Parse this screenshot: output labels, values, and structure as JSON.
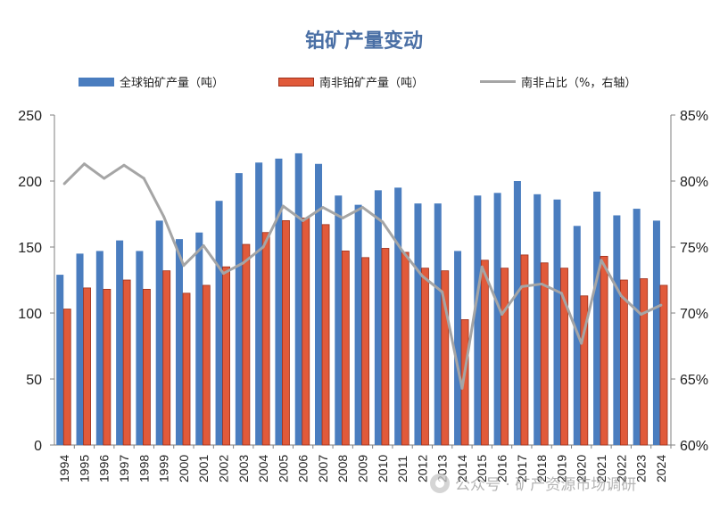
{
  "chart_data": {
    "type": "bar+line",
    "title": "铂矿产量变动",
    "categories": [
      "1994",
      "1995",
      "1996",
      "1997",
      "1998",
      "1999",
      "2000",
      "2001",
      "2002",
      "2003",
      "2004",
      "2005",
      "2006",
      "2007",
      "2008",
      "2009",
      "2010",
      "2011",
      "2012",
      "2013",
      "2014",
      "2015",
      "2016",
      "2017",
      "2018",
      "2019",
      "2020",
      "2021",
      "2022",
      "2023",
      "2024"
    ],
    "series": [
      {
        "name": "全球铂矿产量（吨）",
        "kind": "bar",
        "axis": "left",
        "color": "#4a7dbf",
        "values": [
          129,
          145,
          147,
          155,
          147,
          170,
          156,
          161,
          185,
          206,
          214,
          217,
          221,
          213,
          189,
          182,
          193,
          195,
          183,
          183,
          147,
          189,
          191,
          200,
          190,
          186,
          166,
          192,
          174,
          179,
          170
        ]
      },
      {
        "name": "南非铂矿产量（吨）",
        "kind": "bar",
        "axis": "left",
        "color": "#e15a3a",
        "values": [
          103,
          119,
          118,
          125,
          118,
          132,
          115,
          121,
          135,
          152,
          161,
          170,
          172,
          167,
          147,
          142,
          149,
          146,
          134,
          132,
          95,
          140,
          134,
          144,
          138,
          134,
          113,
          143,
          125,
          126,
          121
        ]
      },
      {
        "name": "南非占比（%，右轴）",
        "kind": "line",
        "axis": "right",
        "color": "#a5a5a5",
        "values": [
          79.8,
          81.3,
          80.2,
          81.2,
          80.2,
          77.3,
          73.6,
          75.1,
          73.0,
          73.8,
          75.0,
          78.1,
          77.0,
          78.0,
          77.2,
          78.0,
          76.9,
          74.7,
          72.8,
          71.6,
          64.3,
          73.5,
          69.9,
          72.0,
          72.2,
          71.5,
          67.7,
          74.0,
          71.3,
          69.9,
          70.6
        ]
      }
    ],
    "y_left": {
      "min": 0,
      "max": 250,
      "ticks": [
        "0",
        "50",
        "100",
        "150",
        "200",
        "250"
      ]
    },
    "y_right": {
      "min": 60,
      "max": 85,
      "ticks": [
        "60%",
        "65%",
        "70%",
        "75%",
        "80%",
        "85%"
      ]
    },
    "legend_position": "top-center",
    "grid": false
  },
  "watermark": "公众号 · 矿产资源市场调研"
}
